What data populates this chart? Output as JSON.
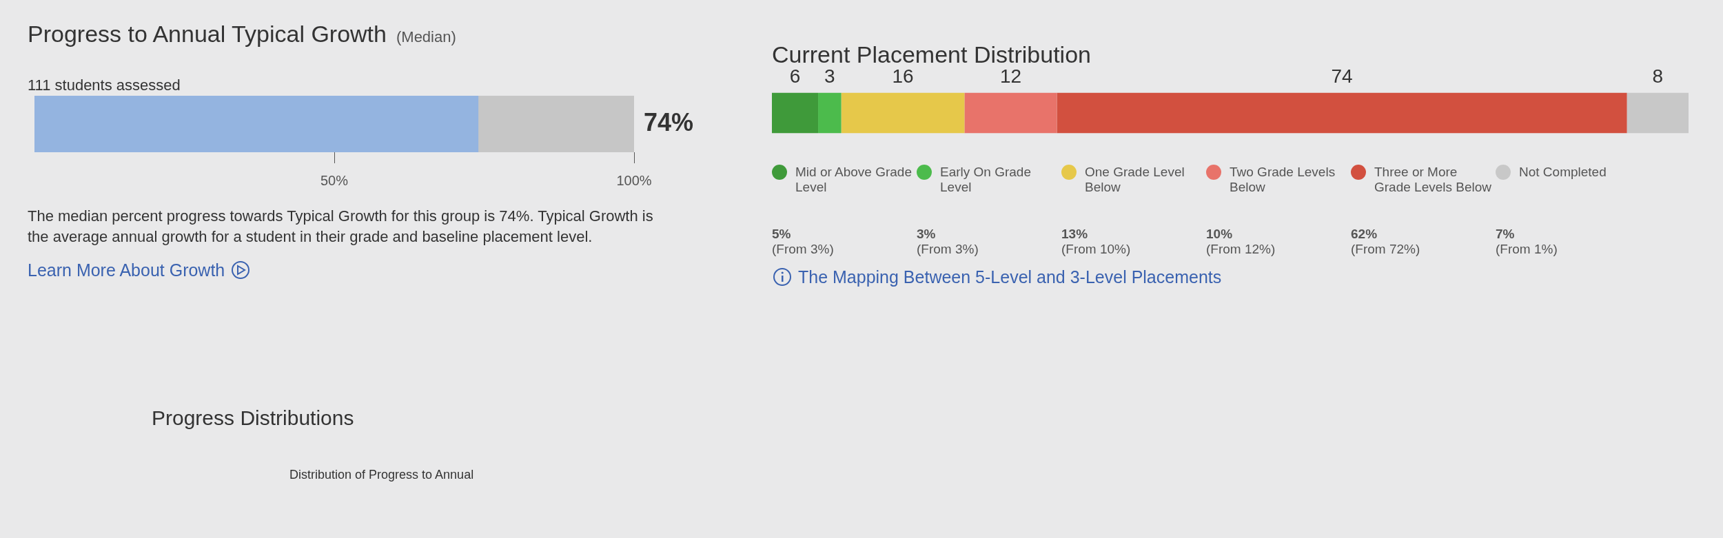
{
  "chart_data": [
    {
      "type": "bar",
      "title": "Progress to Annual Typical Growth",
      "subtitle": "(Median)",
      "orientation": "horizontal",
      "stacked": true,
      "categories": [
        null
      ],
      "series": [
        {
          "color": "#94b4e0",
          "values": [
            74
          ]
        },
        {
          "color": "#c6c6c6",
          "values": [
            26
          ]
        }
      ],
      "xlim": [
        0,
        100
      ],
      "xticks": [
        {
          "value": 50,
          "label": "50%"
        },
        {
          "value": 100,
          "label": "100%"
        }
      ],
      "grid": false,
      "legend": false,
      "tick_labels": "x",
      "annotations": [
        {
          "text": "74%",
          "x": 100
        },
        "111 students assessed",
        "The median percent progress towards Typical Growth for this group is 74%. Typical Growth is the average annual growth for a student in their grade and baseline placement level.",
        "Learn More About Growth"
      ]
    },
    {
      "type": "bar",
      "title": "Current Placement Distribution",
      "orientation": "horizontal",
      "stacked": true,
      "categories": [
        null
      ],
      "data_labels": true,
      "legend": "bottom",
      "grid": false,
      "tick_labels": false,
      "xlim": [
        0,
        119
      ],
      "series": [
        {
          "name": "Mid or Above Grade Level",
          "color": "#3f9a3a",
          "values": [
            6
          ]
        },
        {
          "name": "Early On Grade Level",
          "color": "#4cbb4c",
          "values": [
            3
          ]
        },
        {
          "name": "One Grade Level Below",
          "color": "#e6c84a",
          "values": [
            16
          ]
        },
        {
          "name": "Two Grade Levels Below",
          "color": "#e8736a",
          "values": [
            12
          ]
        },
        {
          "name": "Three or More Grade Levels Below",
          "color": "#d2503f",
          "values": [
            74
          ]
        },
        {
          "name": "Not Completed",
          "color": "#c8c8c8",
          "values": [
            8
          ]
        }
      ],
      "annotations": [
        "5%\n(From 3%)",
        "3%\n(From 3%)",
        "13%\n(From 10%)",
        "10%\n(From 12%)",
        "62%\n(From 72%)",
        "7%\n(From 1%)",
        "The Mapping Between 5-Level and 3-Level Placements"
      ]
    },
    {
      "type": "other",
      "title": "Progress Distributions",
      "annotations": [
        "Distribution of Progress to Annual"
      ]
    }
  ]
}
